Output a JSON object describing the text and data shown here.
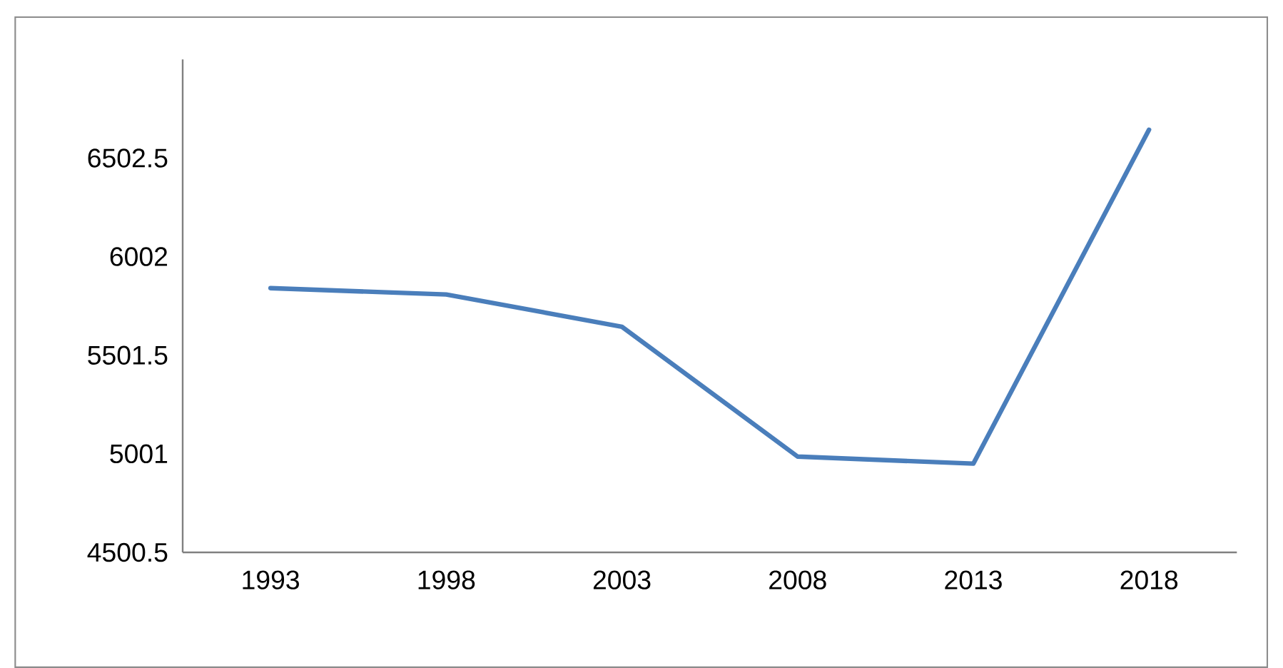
{
  "chart_data": {
    "type": "line",
    "categories": [
      "1993",
      "1998",
      "2003",
      "2008",
      "2013",
      "2018"
    ],
    "series": [
      {
        "color": "#4a7ebb",
        "values": [
          5842,
          5810,
          5646,
          4987,
          4951,
          6646
        ]
      }
    ],
    "ylim": [
      4500.5,
      7003
    ],
    "yticks": [
      4500.5,
      5001,
      5501.5,
      6002,
      6502.5
    ],
    "grid": false,
    "legend": false,
    "marker": "none",
    "line_style": "solid"
  }
}
